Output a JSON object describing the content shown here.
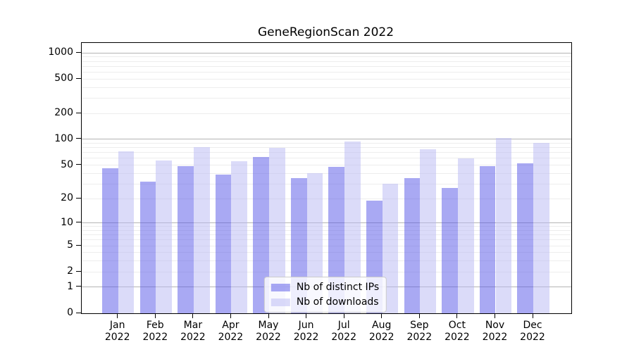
{
  "chart_data": {
    "type": "bar",
    "title": "GeneRegionScan 2022",
    "categories": [
      "Jan",
      "Feb",
      "Mar",
      "Apr",
      "May",
      "Jun",
      "Jul",
      "Aug",
      "Sep",
      "Oct",
      "Nov",
      "Dec"
    ],
    "year": "2022",
    "series": [
      {
        "name": "Nb of distinct IPs",
        "color": "rgba(83,83,231,0.5)",
        "values": [
          46,
          32,
          49,
          39,
          62,
          35,
          48,
          19,
          35,
          27,
          49,
          52
        ]
      },
      {
        "name": "Nb of downloads",
        "color": "rgba(183,183,243,0.5)",
        "values": [
          72,
          57,
          81,
          55,
          80,
          40,
          94,
          30,
          76,
          60,
          103,
          90
        ]
      }
    ],
    "yscale": "log1p",
    "yticks": [
      0,
      1,
      2,
      5,
      10,
      20,
      50,
      100,
      200,
      500,
      1000
    ],
    "ylim": [
      0,
      1300
    ],
    "grid": "horizontal",
    "grid_major_at": [
      1,
      10,
      100,
      1000
    ],
    "legend_position": "bottom-center",
    "colors": {
      "major_grid": "#b4b4b4",
      "minor_grid": "#ededed",
      "axis": "#000000"
    }
  }
}
